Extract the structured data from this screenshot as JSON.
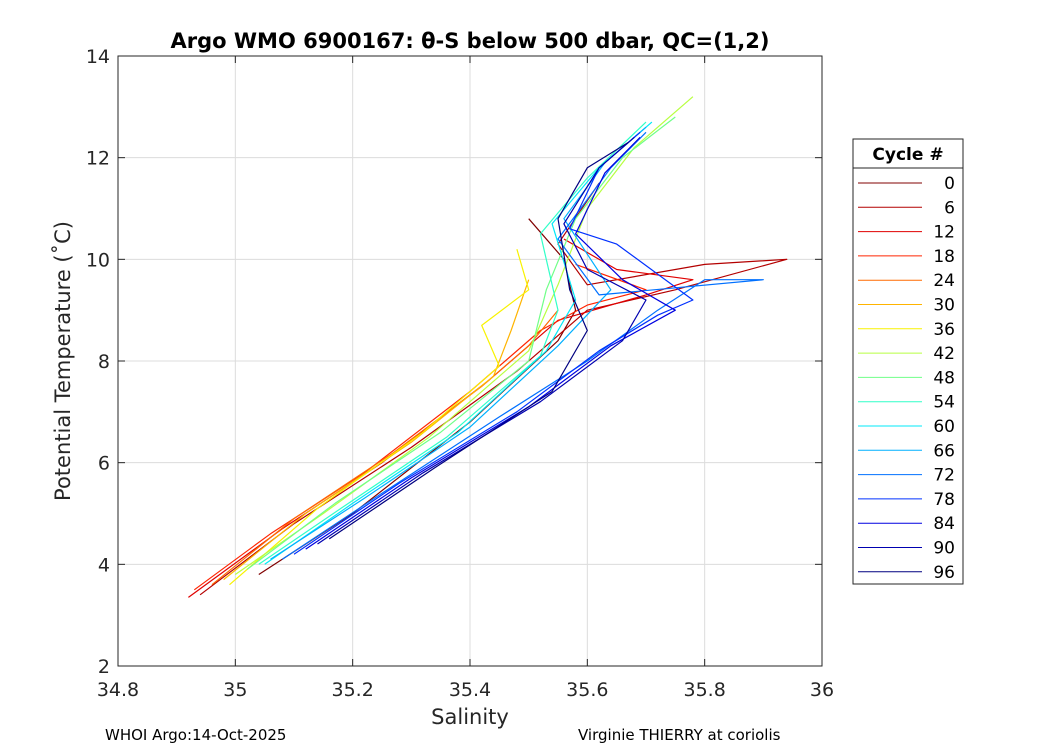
{
  "chart_data": {
    "type": "line",
    "title": "Argo WMO 6900167: θ-S below 500 dbar,  QC=(1,2)",
    "xlabel": "Salinity",
    "ylabel": "Potential Temperature (˚C)",
    "xlim": [
      34.8,
      36
    ],
    "ylim": [
      2,
      14
    ],
    "xticks": [
      34.8,
      35,
      35.2,
      35.4,
      35.6,
      35.8,
      36
    ],
    "xtick_labels": [
      "34.8",
      "35",
      "35.2",
      "35.4",
      "35.6",
      "35.8",
      "36"
    ],
    "yticks": [
      2,
      4,
      6,
      8,
      10,
      12,
      14
    ],
    "ytick_labels": [
      "2",
      "4",
      "6",
      "8",
      "10",
      "12",
      "14"
    ],
    "grid": true,
    "legend": {
      "title": "Cycle #",
      "placement": "right-outside",
      "entries": [
        {
          "label": "0",
          "color": "#800000"
        },
        {
          "label": "6",
          "color": "#b40000"
        },
        {
          "label": "12",
          "color": "#e00000"
        },
        {
          "label": "18",
          "color": "#ff2400"
        },
        {
          "label": "24",
          "color": "#ff6a00"
        },
        {
          "label": "30",
          "color": "#ffb400"
        },
        {
          "label": "36",
          "color": "#f8f200"
        },
        {
          "label": "42",
          "color": "#b8ff40"
        },
        {
          "label": "48",
          "color": "#70ff88"
        },
        {
          "label": "54",
          "color": "#30ffc8"
        },
        {
          "label": "60",
          "color": "#00e8f8"
        },
        {
          "label": "66",
          "color": "#00b0ff"
        },
        {
          "label": "72",
          "color": "#0070ff"
        },
        {
          "label": "78",
          "color": "#0030ff"
        },
        {
          "label": "84",
          "color": "#0000e0"
        },
        {
          "label": "90",
          "color": "#0000b0"
        },
        {
          "label": "96",
          "color": "#000080"
        }
      ]
    },
    "series": [
      {
        "name": "0",
        "color": "#800000",
        "salinity": [
          35.04,
          35.2,
          35.4,
          35.55,
          35.58,
          35.56,
          35.5
        ],
        "theta": [
          3.8,
          5.0,
          6.8,
          8.4,
          9.0,
          10.0,
          10.8
        ]
      },
      {
        "name": "6",
        "color": "#b40000",
        "salinity": [
          34.94,
          35.1,
          35.3,
          35.48,
          35.6,
          35.75,
          35.94,
          35.8,
          35.6,
          35.55,
          35.62
        ],
        "theta": [
          3.4,
          4.8,
          6.3,
          7.8,
          9.0,
          9.4,
          10.0,
          9.9,
          9.5,
          10.3,
          11.5
        ]
      },
      {
        "name": "12",
        "color": "#e00000",
        "salinity": [
          34.92,
          35.08,
          35.25,
          35.43,
          35.55,
          35.7,
          35.78,
          35.65,
          35.56
        ],
        "theta": [
          3.35,
          4.7,
          6.0,
          7.6,
          8.8,
          9.3,
          9.6,
          9.8,
          10.4
        ]
      },
      {
        "name": "18",
        "color": "#ff2400",
        "salinity": [
          34.93,
          35.06,
          35.22,
          35.4,
          35.52,
          35.6,
          35.7,
          35.58
        ],
        "theta": [
          3.5,
          4.6,
          5.8,
          7.4,
          8.6,
          9.1,
          9.4,
          9.9
        ]
      },
      {
        "name": "24",
        "color": "#ff6a00",
        "salinity": [
          34.96,
          35.1,
          35.27,
          35.42,
          35.5,
          35.55
        ],
        "theta": [
          3.6,
          4.9,
          6.2,
          7.5,
          8.3,
          9.0
        ]
      },
      {
        "name": "30",
        "color": "#ffb400",
        "salinity": [
          34.98,
          35.12,
          35.3,
          35.44,
          35.47,
          35.5
        ],
        "theta": [
          3.7,
          5.0,
          6.4,
          7.7,
          8.6,
          9.6
        ]
      },
      {
        "name": "36",
        "color": "#f8f200",
        "salinity": [
          34.99,
          35.14,
          35.32,
          35.45,
          35.42,
          35.5,
          35.48
        ],
        "theta": [
          3.6,
          5.1,
          6.6,
          7.9,
          8.7,
          9.4,
          10.2
        ]
      },
      {
        "name": "42",
        "color": "#b8ff40",
        "salinity": [
          35.0,
          35.15,
          35.33,
          35.5,
          35.55,
          35.6,
          35.68,
          35.78
        ],
        "theta": [
          3.8,
          5.0,
          6.5,
          8.2,
          9.5,
          11.0,
          12.2,
          13.2
        ]
      },
      {
        "name": "48",
        "color": "#70ff88",
        "salinity": [
          35.02,
          35.17,
          35.35,
          35.5,
          35.53,
          35.58,
          35.66,
          35.75
        ],
        "theta": [
          3.9,
          5.2,
          6.6,
          8.0,
          9.4,
          10.8,
          12.0,
          12.8
        ]
      },
      {
        "name": "54",
        "color": "#30ffc8",
        "salinity": [
          35.04,
          35.18,
          35.36,
          35.52,
          35.55,
          35.52,
          35.6,
          35.7
        ],
        "theta": [
          4.0,
          5.1,
          6.5,
          8.1,
          9.0,
          10.5,
          11.6,
          12.7
        ]
      },
      {
        "name": "60",
        "color": "#00e8f8",
        "salinity": [
          35.05,
          35.2,
          35.38,
          35.53,
          35.58,
          35.54,
          35.62,
          35.71
        ],
        "theta": [
          4.0,
          5.2,
          6.6,
          8.2,
          9.2,
          10.7,
          11.8,
          12.7
        ]
      },
      {
        "name": "66",
        "color": "#00b0ff",
        "salinity": [
          35.06,
          35.22,
          35.4,
          35.55,
          35.64,
          35.56,
          35.63,
          35.7
        ],
        "theta": [
          4.1,
          5.3,
          6.7,
          8.3,
          9.4,
          10.8,
          11.9,
          12.6
        ]
      },
      {
        "name": "72",
        "color": "#0070ff",
        "salinity": [
          35.08,
          35.25,
          35.45,
          35.6,
          35.72,
          35.8,
          35.9,
          35.62,
          35.55,
          35.64,
          35.7
        ],
        "theta": [
          4.1,
          5.4,
          6.9,
          8.0,
          9.0,
          9.6,
          9.6,
          9.3,
          10.4,
          11.8,
          12.5
        ]
      },
      {
        "name": "78",
        "color": "#0030ff",
        "salinity": [
          35.1,
          35.28,
          35.48,
          35.62,
          35.72,
          35.78,
          35.65,
          35.57,
          35.62,
          35.69
        ],
        "theta": [
          4.2,
          5.6,
          7.0,
          8.2,
          8.9,
          9.2,
          10.3,
          10.6,
          11.8,
          12.5
        ]
      },
      {
        "name": "84",
        "color": "#0000e0",
        "salinity": [
          35.12,
          35.3,
          35.5,
          35.64,
          35.75,
          35.66,
          35.58,
          35.63,
          35.69
        ],
        "theta": [
          4.3,
          5.7,
          7.1,
          8.3,
          9.0,
          9.6,
          10.5,
          11.7,
          12.4
        ]
      },
      {
        "name": "90",
        "color": "#0000b0",
        "salinity": [
          35.14,
          35.32,
          35.52,
          35.66,
          35.7,
          35.6,
          35.56,
          35.62,
          35.68
        ],
        "theta": [
          4.4,
          5.8,
          7.2,
          8.4,
          9.2,
          9.8,
          10.7,
          11.8,
          12.4
        ]
      },
      {
        "name": "96",
        "color": "#000080",
        "salinity": [
          35.16,
          35.34,
          35.54,
          35.6,
          35.57,
          35.55,
          35.6,
          35.67
        ],
        "theta": [
          4.5,
          5.9,
          7.4,
          8.6,
          9.4,
          10.8,
          11.8,
          12.3
        ]
      }
    ]
  },
  "footer": {
    "left": "WHOI Argo:14-Oct-2025",
    "right": "Virginie THIERRY at coriolis"
  }
}
